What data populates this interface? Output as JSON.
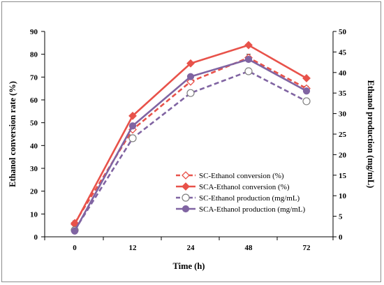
{
  "chart_data": {
    "type": "line",
    "categories": [
      "0",
      "12",
      "24",
      "48",
      "72"
    ],
    "xlabel": "Time (h)",
    "ylabel_left": "Ethanol conversion rate (%)",
    "ylabel_right": "Ethanol production (mg/mL)",
    "ylim_left": [
      0,
      90
    ],
    "ylim_right": [
      0,
      50
    ],
    "yticks_left": [
      0,
      10,
      20,
      30,
      40,
      50,
      60,
      70,
      80,
      90
    ],
    "yticks_right": [
      0,
      5,
      10,
      15,
      20,
      25,
      30,
      35,
      40,
      45,
      50
    ],
    "grid": false,
    "legend_position": "center-bottom",
    "series": [
      {
        "name": "SC-Ethanol conversion (%)",
        "axis": "left",
        "values": [
          6,
          47,
          68,
          78.5,
          65
        ],
        "errors": [
          1,
          1.5,
          1.5,
          1.5,
          1
        ],
        "color": "#e8524a",
        "dashed": true,
        "marker": "diamond-open"
      },
      {
        "name": "SCA-Ethanol conversion (%)",
        "axis": "left",
        "values": [
          5.5,
          53,
          76,
          84,
          69.5
        ],
        "color": "#e8524a",
        "dashed": false,
        "marker": "diamond-filled"
      },
      {
        "name": "SC-Ethanol production (mg/mL)",
        "axis": "right",
        "values": [
          1.6,
          24,
          35,
          40.3,
          33
        ],
        "color": "#8064a2",
        "dashed": true,
        "marker": "circle-open"
      },
      {
        "name": "SCA-Ethanol production (mg/mL)",
        "axis": "right",
        "values": [
          1.4,
          27,
          39,
          43.2,
          35.5
        ],
        "color": "#8064a2",
        "dashed": false,
        "marker": "circle-filled"
      }
    ]
  }
}
